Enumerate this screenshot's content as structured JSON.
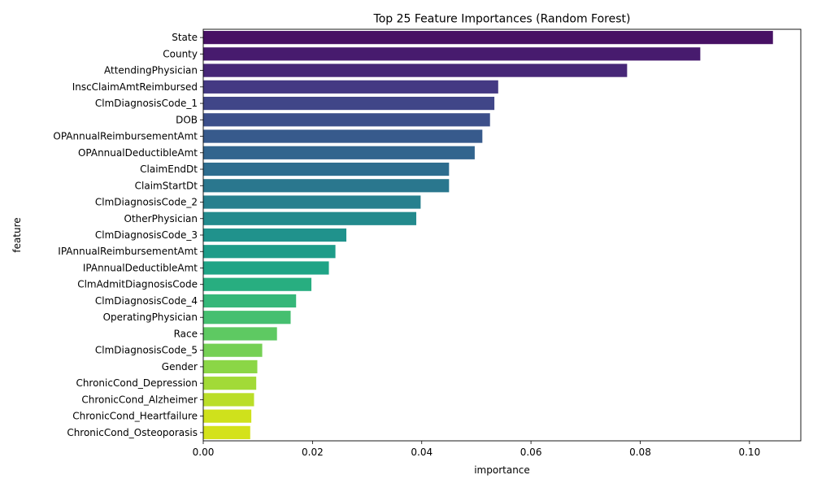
{
  "chart_data": {
    "type": "bar",
    "orientation": "horizontal",
    "title": "Top 25 Feature Importances (Random Forest)",
    "xlabel": "importance",
    "ylabel": "feature",
    "xlim": [
      0,
      0.1094
    ],
    "xticks": [
      0.0,
      0.02,
      0.04,
      0.06,
      0.08,
      0.1
    ],
    "xtick_labels": [
      "0.00",
      "0.02",
      "0.04",
      "0.06",
      "0.08",
      "0.10"
    ],
    "grid": false,
    "palette": "viridis",
    "categories": [
      "State",
      "County",
      "AttendingPhysician",
      "InscClaimAmtReimbursed",
      "ClmDiagnosisCode_1",
      "DOB",
      "OPAnnualReimbursementAmt",
      "OPAnnualDeductibleAmt",
      "ClaimEndDt",
      "ClaimStartDt",
      "ClmDiagnosisCode_2",
      "OtherPhysician",
      "ClmDiagnosisCode_3",
      "IPAnnualReimbursementAmt",
      "IPAnnualDeductibleAmt",
      "ClmAdmitDiagnosisCode",
      "ClmDiagnosisCode_4",
      "OperatingPhysician",
      "Race",
      "ClmDiagnosisCode_5",
      "Gender",
      "ChronicCond_Depression",
      "ChronicCond_Alzheimer",
      "ChronicCond_Heartfailure",
      "ChronicCond_Osteoporasis"
    ],
    "values": [
      0.1043,
      0.091,
      0.0776,
      0.054,
      0.0533,
      0.0525,
      0.0511,
      0.0497,
      0.045,
      0.045,
      0.0398,
      0.039,
      0.0262,
      0.0242,
      0.023,
      0.0198,
      0.017,
      0.016,
      0.0135,
      0.0108,
      0.0099,
      0.0097,
      0.0093,
      0.0088,
      0.0086
    ],
    "colors": [
      "#471164",
      "#471b6e",
      "#472777",
      "#443983",
      "#404688",
      "#3c4f8a",
      "#375a8c",
      "#32658e",
      "#2e6d8e",
      "#2a778e",
      "#27808e",
      "#238a8d",
      "#20928c",
      "#1e9c89",
      "#20a486",
      "#28ae80",
      "#35b779",
      "#45bf70",
      "#5ec962",
      "#75d054",
      "#8bd646",
      "#a2da37",
      "#bade28",
      "#cfe11c",
      "#d4e21a"
    ]
  }
}
